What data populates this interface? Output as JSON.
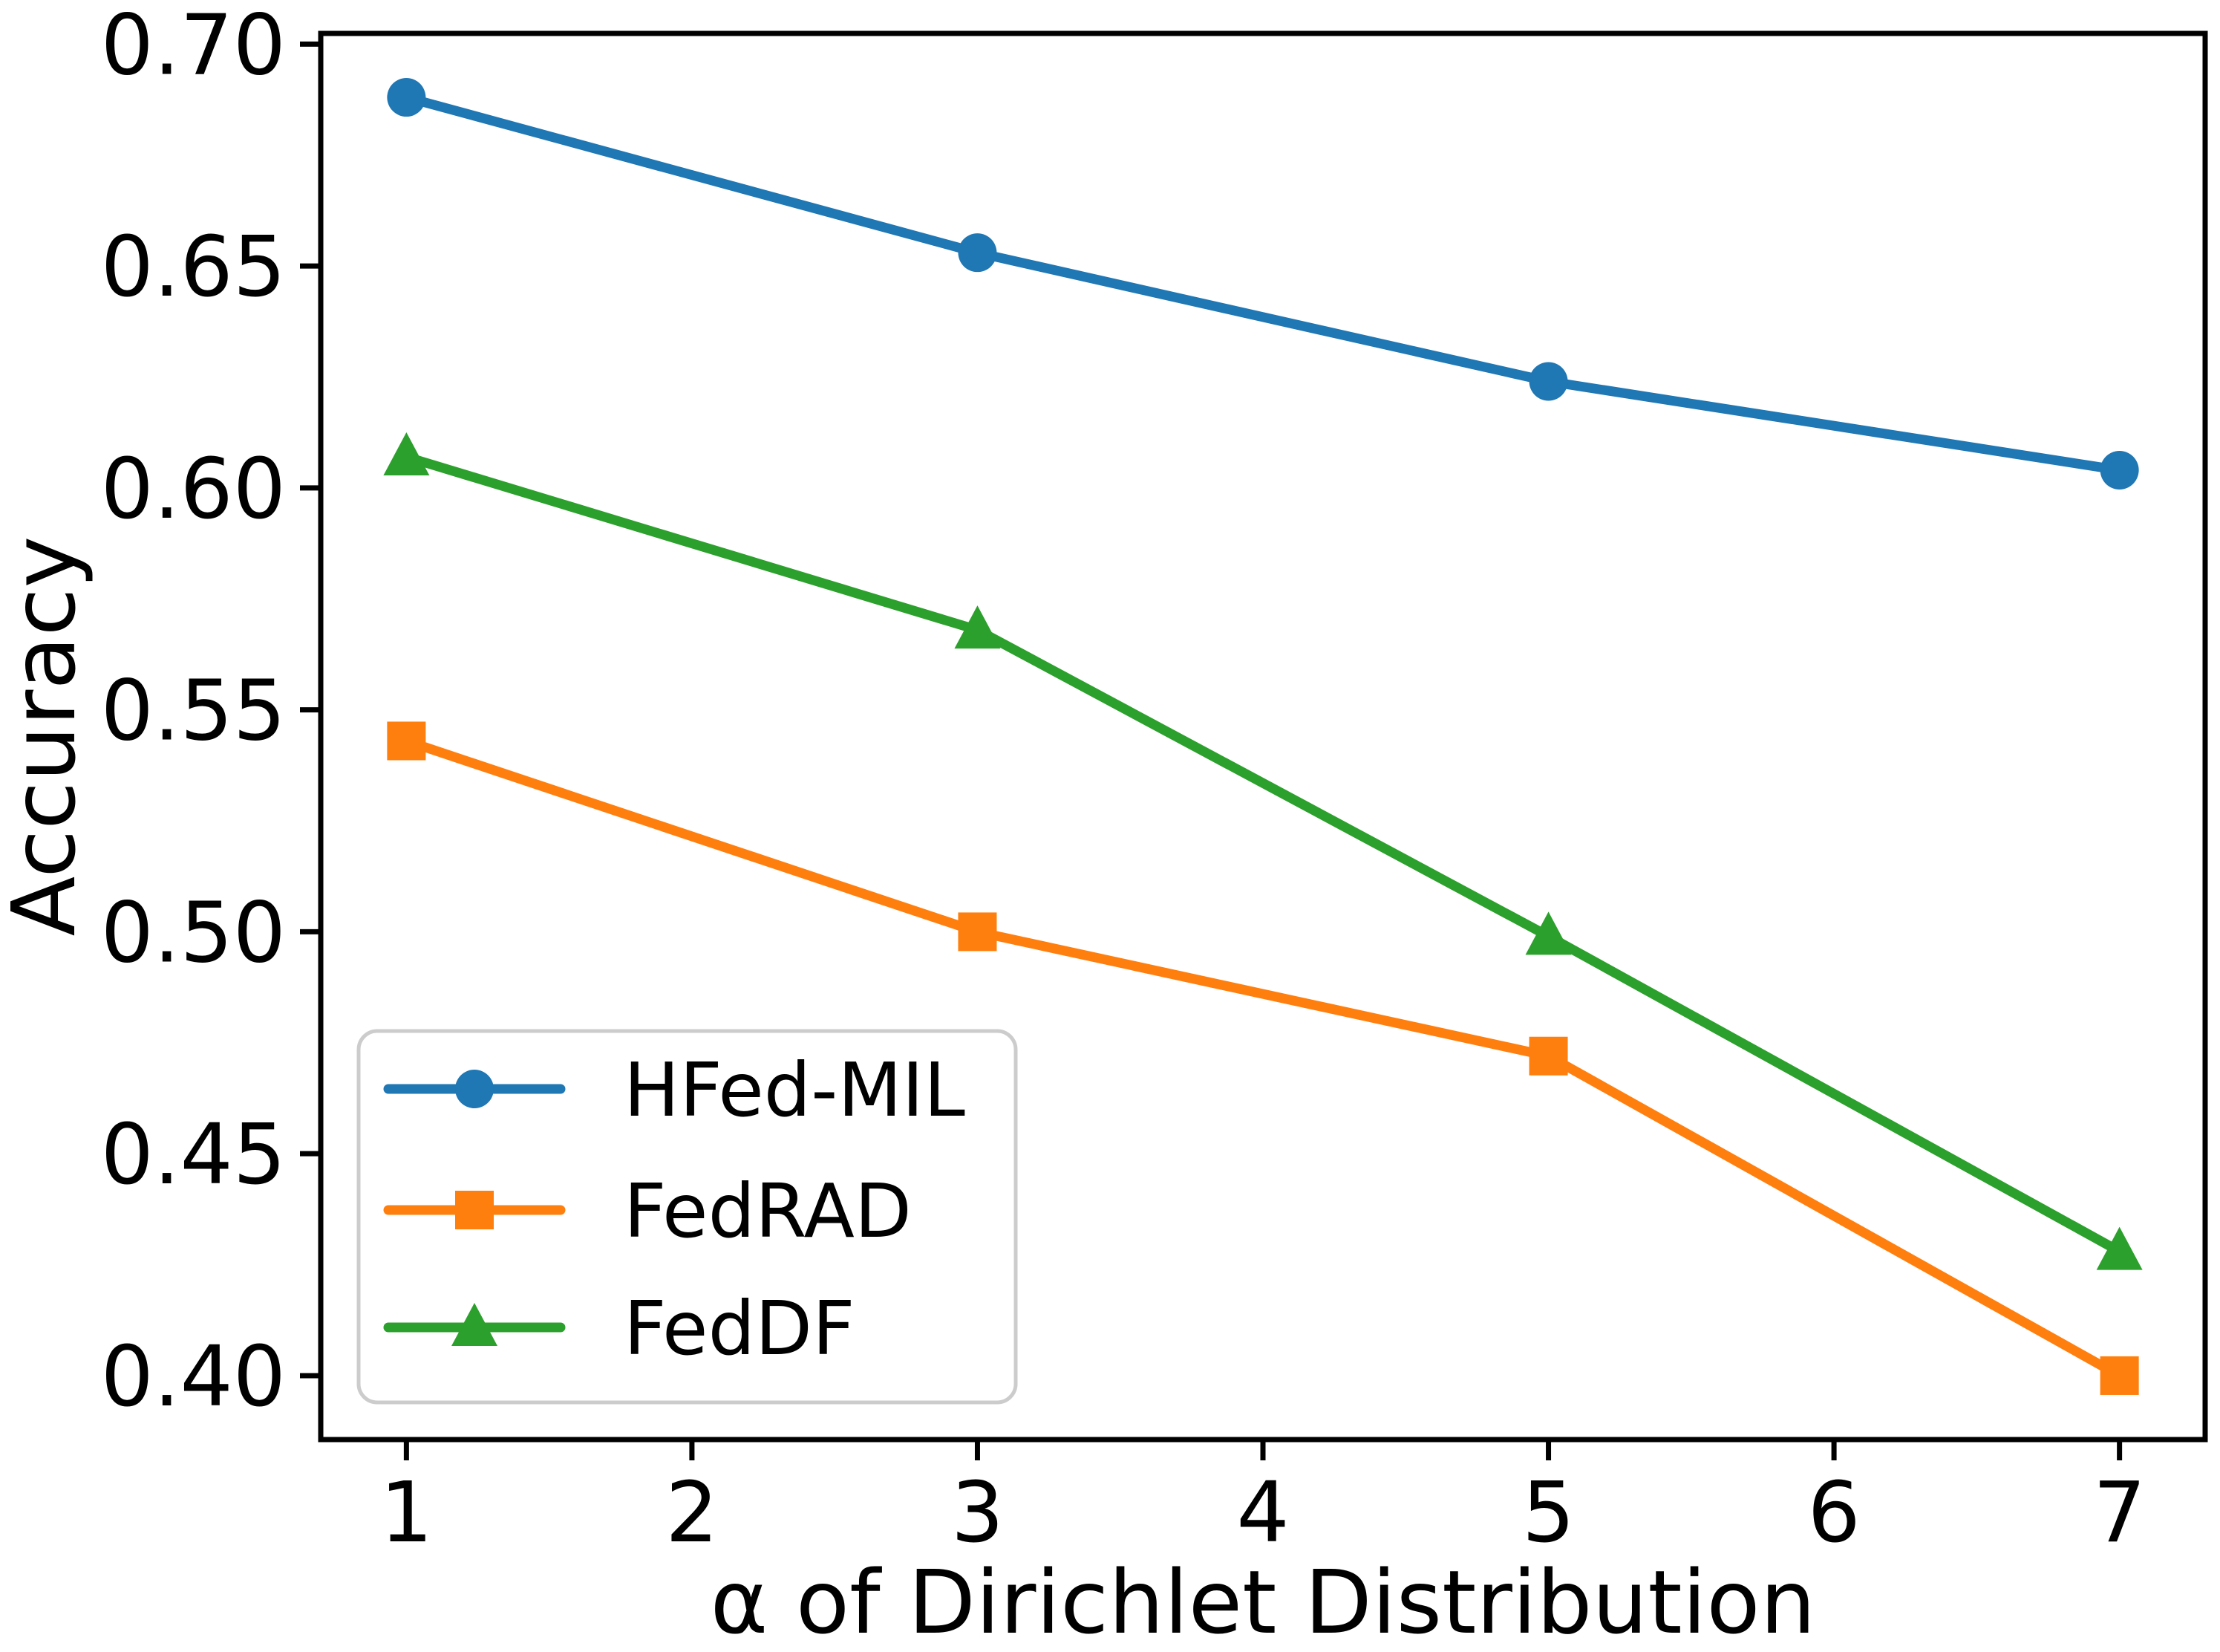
{
  "figure": {
    "background": "#ffffff",
    "title": ""
  },
  "chart_data": {
    "type": "line",
    "x": [
      1,
      3,
      5,
      7
    ],
    "series": [
      {
        "name": "HFed-MIL",
        "color": "#1f77b4",
        "marker": "circle",
        "values": [
          0.688,
          0.653,
          0.624,
          0.604
        ]
      },
      {
        "name": "FedRAD",
        "color": "#ff7f0e",
        "marker": "square",
        "values": [
          0.543,
          0.5,
          0.472,
          0.4
        ]
      },
      {
        "name": "FedDF",
        "color": "#2ca02c",
        "marker": "triangle",
        "values": [
          0.607,
          0.568,
          0.499,
          0.428
        ]
      }
    ],
    "title": "",
    "xlabel": "α of Dirichlet Distribution",
    "ylabel": "Accuracy",
    "xlim": [
      0.7,
      7.3
    ],
    "ylim": [
      0.3856,
      0.7024
    ],
    "xticks": [
      1,
      2,
      3,
      4,
      5,
      6,
      7
    ],
    "xtick_labels": [
      "1",
      "2",
      "3",
      "4",
      "5",
      "6",
      "7"
    ],
    "yticks": [
      0.7,
      0.65,
      0.6,
      0.55,
      0.5,
      0.45,
      0.4
    ],
    "ytick_labels": [
      "0.70",
      "0.65",
      "0.60",
      "0.55",
      "0.50",
      "0.45",
      "0.40"
    ],
    "grid": false,
    "legend": {
      "position": "lower left",
      "border_color": "#cccccc",
      "background": "#ffffff",
      "entries": [
        "HFed-MIL",
        "FedRAD",
        "FedDF"
      ]
    },
    "axis_color": "#000000",
    "text_color": "#000000"
  }
}
